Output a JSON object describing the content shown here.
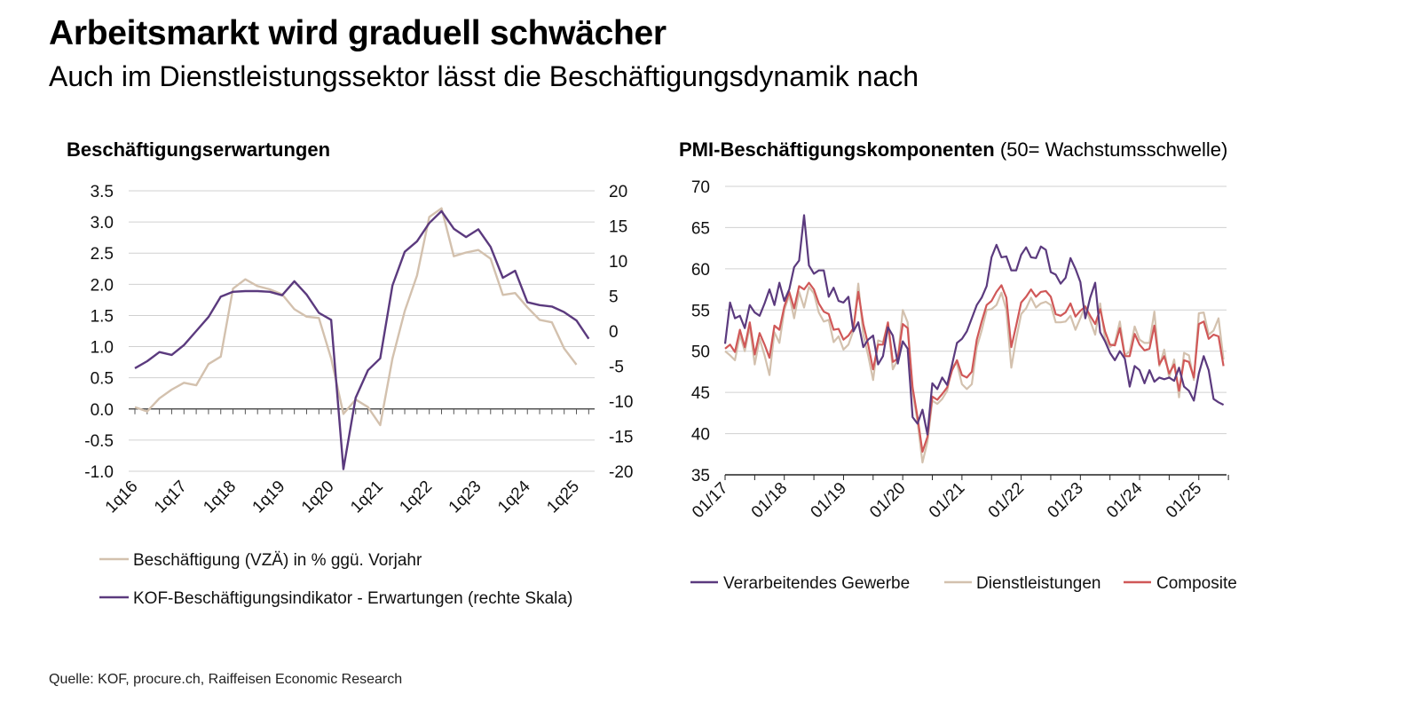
{
  "header": {
    "title": "Arbeitsmarkt wird graduell schwächer",
    "subtitle": "Auch im Dienstleistungssektor lässt die Beschäftigungsdynamik nach"
  },
  "footer": {
    "source": "Quelle: KOF, procure.ch, Raiffeisen Economic Research"
  },
  "colors": {
    "purple": "#5b3a7e",
    "beige": "#d3c1ae",
    "red": "#d05858",
    "grid": "#d0d0d0",
    "axis": "#555555"
  },
  "chart_data": [
    {
      "type": "line",
      "title": "Beschäftigungserwartungen",
      "x_tick_labels": [
        "1q16",
        "1q17",
        "1q18",
        "1q19",
        "1q20",
        "1q21",
        "1q22",
        "1q23",
        "1q24",
        "1q25"
      ],
      "x_start": "1q16",
      "x_frequency": "quarterly",
      "y_left": {
        "ticks": [
          "3.5",
          "3.0",
          "2.5",
          "2.0",
          "1.5",
          "1.0",
          "0.5",
          "0.0",
          "-0.5",
          "-1.0"
        ],
        "range": [
          -1.0,
          3.5
        ]
      },
      "y_right": {
        "ticks": [
          "20",
          "15",
          "10",
          "5",
          "0",
          "-5",
          "-10",
          "-15",
          "-20"
        ],
        "range": [
          -20,
          20
        ]
      },
      "grid": true,
      "legend_position": "bottom",
      "series": [
        {
          "name": "Beschäftigung (VZÄ) in % ggü. Vorjahr",
          "axis": "left",
          "color": "#d3c1ae",
          "values": [
            0.03,
            -0.04,
            0.17,
            0.31,
            0.42,
            0.38,
            0.72,
            0.84,
            1.93,
            2.08,
            1.97,
            1.92,
            1.84,
            1.6,
            1.48,
            1.46,
            0.81,
            -0.08,
            0.15,
            0.03,
            -0.26,
            0.81,
            1.57,
            2.14,
            3.08,
            3.22,
            2.45,
            2.51,
            2.55,
            2.41,
            1.83,
            1.86,
            1.63,
            1.43,
            1.39,
            0.97,
            0.71
          ]
        },
        {
          "name": "KOF-Beschäftigungsindikator - Erwartungen (rechte Skala)",
          "axis": "right",
          "color": "#5b3a7e",
          "values": [
            -5.3,
            -4.3,
            -3.0,
            -3.4,
            -2.0,
            0.0,
            2.0,
            4.9,
            5.6,
            5.7,
            5.7,
            5.6,
            5.1,
            7.1,
            5.2,
            2.6,
            1.6,
            -19.7,
            -9.5,
            -5.6,
            -3.9,
            6.5,
            11.3,
            12.8,
            15.4,
            17.1,
            14.6,
            13.4,
            14.5,
            12.0,
            7.6,
            8.6,
            4.1,
            3.7,
            3.5,
            2.7,
            1.5,
            -1.1
          ]
        }
      ]
    },
    {
      "type": "line",
      "title": "PMI-Beschäftigungskomponenten",
      "title_note": "(50= Wachstumsschwelle)",
      "x_tick_labels": [
        "01/17",
        "01/18",
        "01/19",
        "01/20",
        "01/21",
        "01/22",
        "01/23",
        "01/24",
        "01/25"
      ],
      "x_start": "01/17",
      "x_frequency": "monthly",
      "y": {
        "ticks": [
          "70",
          "65",
          "60",
          "55",
          "50",
          "45",
          "40",
          "35"
        ],
        "range": [
          35,
          70
        ]
      },
      "grid": true,
      "legend_position": "bottom",
      "series": [
        {
          "name": "Verarbeitendes Gewerbe",
          "color": "#5b3a7e",
          "values": [
            50.9,
            55.9,
            54.0,
            54.3,
            52.8,
            55.6,
            54.7,
            54.3,
            55.8,
            57.5,
            55.6,
            58.3,
            56.1,
            57.5,
            60.2,
            61.0,
            66.5,
            60.4,
            59.4,
            59.8,
            59.8,
            56.6,
            57.7,
            56.1,
            55.9,
            56.6,
            52.4,
            53.5,
            50.5,
            51.4,
            51.9,
            48.4,
            49.4,
            52.9,
            51.9,
            48.5,
            51.2,
            50.3,
            42.0,
            41.2,
            42.9,
            39.9,
            46.1,
            45.4,
            46.8,
            45.9,
            48.4,
            51.0,
            51.5,
            52.4,
            54.0,
            55.6,
            56.5,
            57.9,
            61.4,
            62.9,
            61.4,
            61.5,
            59.8,
            59.8,
            61.7,
            62.6,
            61.4,
            61.3,
            62.7,
            62.3,
            59.6,
            59.3,
            58.2,
            58.9,
            61.3,
            60.0,
            58.4,
            54.0,
            56.5,
            58.3,
            52.3,
            51.2,
            49.8,
            48.9,
            50.0,
            49.1,
            45.7,
            48.2,
            47.7,
            46.1,
            47.7,
            46.3,
            46.8,
            46.6,
            46.8,
            46.4,
            48.0,
            45.7,
            45.2,
            44.0,
            47.3,
            49.4,
            47.7,
            44.2,
            43.8,
            43.5
          ]
        },
        {
          "name": "Dienstleistungen",
          "color": "#d3c1ae",
          "values": [
            50.0,
            49.5,
            48.9,
            52.0,
            50.0,
            53.0,
            48.4,
            51.5,
            49.5,
            47.1,
            52.3,
            51.0,
            55.0,
            56.8,
            54.0,
            57.2,
            55.3,
            57.8,
            57.0,
            54.7,
            53.6,
            53.8,
            51.1,
            51.8,
            50.2,
            50.8,
            52.5,
            58.2,
            52.0,
            49.5,
            46.5,
            51.3,
            51.1,
            53.4,
            47.8,
            49.0,
            55.0,
            53.5,
            45.0,
            41.5,
            36.5,
            39.0,
            44.0,
            43.6,
            44.2,
            45.2,
            48.2,
            48.5,
            46.0,
            45.4,
            46.0,
            50.5,
            52.5,
            55.0,
            55.1,
            55.6,
            57.1,
            55.0,
            48.0,
            51.5,
            54.5,
            55.2,
            56.5,
            55.3,
            55.8,
            56.0,
            55.6,
            53.5,
            53.5,
            53.6,
            54.3,
            52.6,
            54.0,
            55.5,
            53.7,
            52.0,
            55.8,
            51.5,
            50.5,
            51.0,
            53.6,
            49.5,
            50.0,
            53.0,
            51.4,
            51.0,
            51.0,
            54.8,
            48.2,
            50.2,
            46.8,
            49.0,
            44.4,
            49.8,
            49.5,
            46.5,
            54.6,
            54.7,
            52.0,
            52.5,
            54.0,
            49.0
          ]
        },
        {
          "name": "Composite",
          "color": "#d05858",
          "values": [
            50.3,
            50.8,
            49.9,
            52.6,
            50.5,
            53.5,
            49.6,
            52.2,
            50.8,
            49.2,
            53.1,
            52.6,
            55.4,
            57.2,
            55.2,
            57.9,
            57.5,
            58.3,
            57.5,
            55.8,
            54.8,
            54.5,
            52.6,
            52.7,
            51.4,
            51.9,
            52.8,
            57.2,
            53.3,
            50.8,
            47.8,
            50.8,
            50.8,
            53.5,
            48.7,
            49.1,
            53.3,
            52.8,
            45.6,
            42.0,
            37.8,
            39.6,
            44.5,
            44.1,
            44.8,
            45.6,
            47.7,
            48.9,
            47.1,
            46.8,
            47.5,
            51.4,
            53.6,
            55.6,
            56.1,
            57.2,
            58.0,
            56.5,
            50.5,
            53.1,
            55.9,
            56.6,
            57.5,
            56.6,
            57.2,
            57.3,
            56.6,
            54.5,
            54.3,
            54.7,
            55.8,
            54.2,
            54.9,
            55.4,
            54.3,
            53.3,
            55.1,
            52.4,
            50.8,
            50.7,
            52.8,
            49.4,
            49.4,
            52.1,
            50.8,
            50.1,
            50.3,
            53.1,
            48.4,
            49.4,
            47.3,
            48.4,
            45.2,
            48.9,
            48.7,
            46.8,
            53.3,
            53.6,
            51.5,
            52.0,
            51.8,
            48.2
          ]
        }
      ]
    }
  ]
}
